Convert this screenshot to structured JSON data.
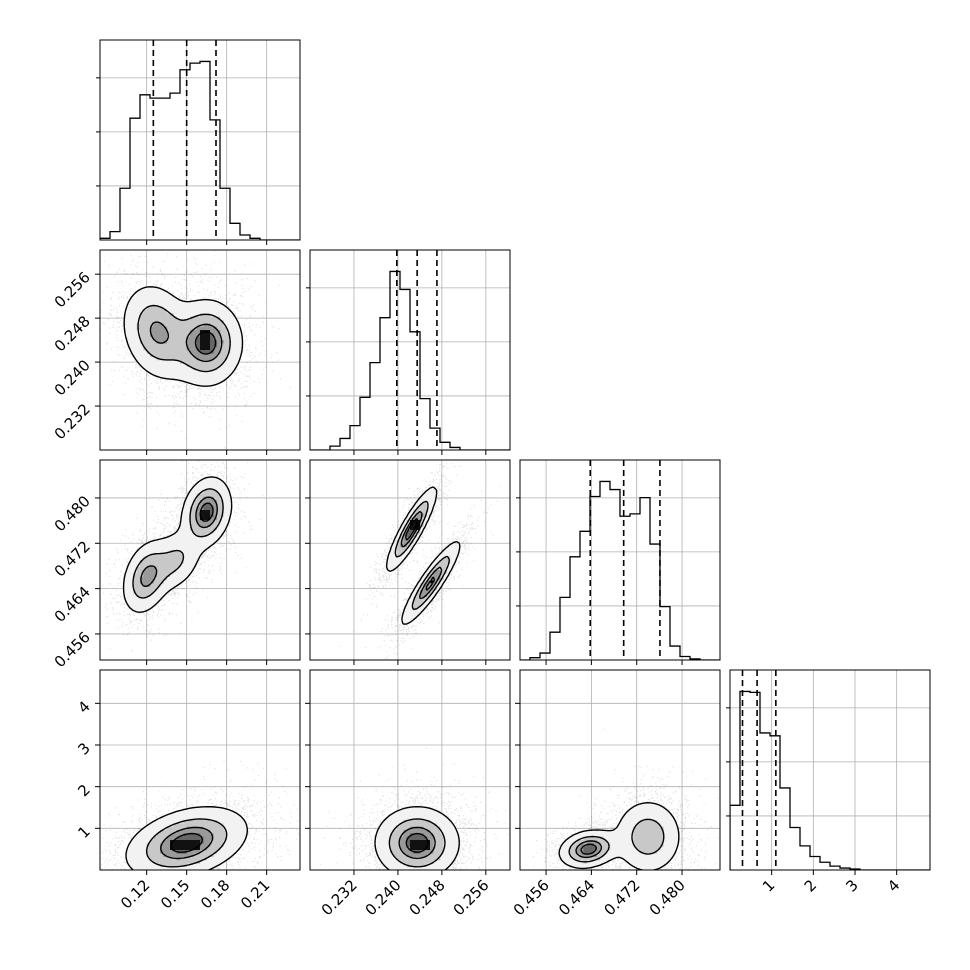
{
  "chart_data": {
    "type": "corner",
    "parameters": [
      {
        "index": 0,
        "range": [
          0.085,
          0.235
        ],
        "ticks": [
          0.12,
          0.15,
          0.18,
          0.21
        ],
        "tick_labels": [
          "0.12",
          "0.15",
          "0.18",
          "0.21"
        ],
        "quantiles": [
          0.125,
          0.15,
          0.172
        ],
        "hist": {
          "x_start": 0.085,
          "bin_width": 0.0075,
          "counts": [
            1,
            5,
            31,
            73,
            87,
            85,
            85,
            88,
            102,
            106,
            107,
            72,
            31,
            10,
            3,
            1,
            0,
            0,
            0,
            0
          ]
        }
      },
      {
        "index": 1,
        "range": [
          0.224,
          0.2604
        ],
        "ticks": [
          0.232,
          0.24,
          0.248,
          0.256
        ],
        "tick_labels": [
          "0.232",
          "0.240",
          "0.248",
          "0.256"
        ],
        "quantiles": [
          0.2398,
          0.2435,
          0.2471
        ],
        "hist": {
          "x_start": 0.224,
          "bin_width": 0.00182,
          "counts": [
            0,
            0,
            3,
            9,
            19,
            41,
            68,
            103,
            139,
            125,
            92,
            40,
            17,
            6,
            2,
            0,
            0,
            0,
            0,
            0
          ]
        }
      },
      {
        "index": 2,
        "range": [
          0.4514,
          0.4867
        ],
        "ticks": [
          0.456,
          0.464,
          0.472,
          0.48
        ],
        "tick_labels": [
          "0.456",
          "0.464",
          "0.472",
          "0.480"
        ],
        "quantiles": [
          0.4638,
          0.4697,
          0.4761
        ],
        "hist": {
          "x_start": 0.4514,
          "bin_width": 0.001765,
          "counts": [
            0,
            2,
            6,
            24,
            54,
            89,
            111,
            141,
            154,
            147,
            124,
            126,
            140,
            100,
            46,
            12,
            3,
            1,
            0,
            0
          ]
        }
      },
      {
        "index": 3,
        "range": [
          0.0,
          4.8
        ],
        "ticks": [
          1,
          2,
          3,
          4
        ],
        "tick_labels": [
          "1",
          "2",
          "3",
          "4"
        ],
        "quantiles": [
          0.3,
          0.65,
          1.1
        ],
        "hist": {
          "x_start": 0.0,
          "bin_width": 0.24,
          "counts": [
            67,
            185,
            184,
            142,
            139,
            85,
            44,
            25,
            14,
            8,
            4,
            2,
            1,
            0,
            0,
            0,
            0,
            0,
            0,
            0
          ]
        }
      }
    ],
    "pairs": [
      {
        "row": 1,
        "col": 0,
        "blobs": [
          {
            "cx": 0.128,
            "cy": 0.2455,
            "sx": 0.013,
            "sy": 0.0043,
            "rho": -0.2,
            "w": 0.45
          },
          {
            "cx": 0.165,
            "cy": 0.2435,
            "sx": 0.013,
            "sy": 0.0038,
            "rho": 0.0,
            "w": 0.55
          }
        ]
      },
      {
        "row": 2,
        "col": 0,
        "blobs": [
          {
            "cx": 0.12,
            "cy": 0.466,
            "sx": 0.009,
            "sy": 0.0032,
            "rho": 0.3,
            "w": 0.35
          },
          {
            "cx": 0.142,
            "cy": 0.469,
            "sx": 0.01,
            "sy": 0.0028,
            "rho": 0.3,
            "w": 0.2
          },
          {
            "cx": 0.165,
            "cy": 0.4775,
            "sx": 0.009,
            "sy": 0.003,
            "rho": 0.2,
            "w": 0.45
          }
        ]
      },
      {
        "row": 2,
        "col": 1,
        "blobs": [
          {
            "cx": 0.2425,
            "cy": 0.4745,
            "sx": 0.0022,
            "sy": 0.0036,
            "rho": 0.88,
            "w": 0.5
          },
          {
            "cx": 0.246,
            "cy": 0.465,
            "sx": 0.0026,
            "sy": 0.0036,
            "rho": 0.9,
            "w": 0.5
          }
        ]
      },
      {
        "row": 3,
        "col": 0,
        "blobs": [
          {
            "cx": 0.15,
            "cy": 0.65,
            "sx": 0.022,
            "sy": 0.42,
            "rho": 0.35,
            "w": 1.0
          }
        ]
      },
      {
        "row": 3,
        "col": 1,
        "blobs": [
          {
            "cx": 0.2435,
            "cy": 0.65,
            "sx": 0.0037,
            "sy": 0.42,
            "rho": 0.0,
            "w": 1.0
          }
        ]
      },
      {
        "row": 3,
        "col": 2,
        "blobs": [
          {
            "cx": 0.4635,
            "cy": 0.5,
            "sx": 0.0025,
            "sy": 0.22,
            "rho": 0.2,
            "w": 0.4
          },
          {
            "cx": 0.474,
            "cy": 0.8,
            "sx": 0.003,
            "sy": 0.45,
            "rho": 0.0,
            "w": 0.6
          }
        ]
      }
    ],
    "contour_levels": [
      0.118,
      0.393,
      0.675,
      0.865
    ],
    "grid": true,
    "title": "",
    "xlabel": "",
    "ylabel": ""
  }
}
